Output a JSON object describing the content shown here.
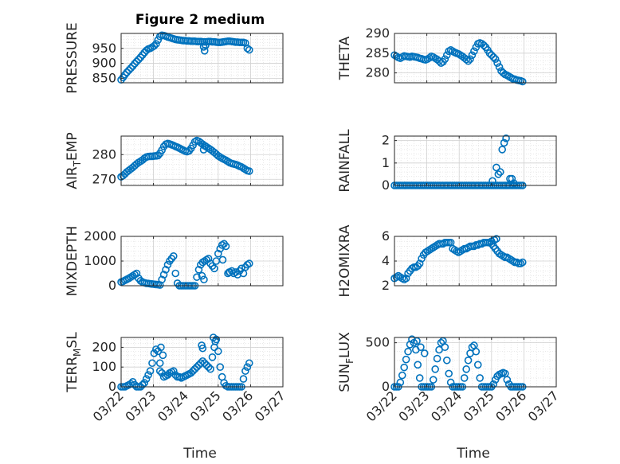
{
  "title": "Figure 2 medium",
  "xlabel": "Time",
  "x_tick_labels": [
    "03/22",
    "03/23",
    "03/24",
    "03/25",
    "03/26",
    "03/27"
  ],
  "marker_color": "#0072BD",
  "chart_data": [
    {
      "type": "scatter",
      "name": "pressure",
      "ylabel": "PRESSURE",
      "ylim": [
        835,
        1000
      ],
      "yticks": [
        850,
        900,
        950
      ],
      "x": [
        0.0,
        0.06,
        0.12,
        0.18,
        0.24,
        0.3,
        0.36,
        0.42,
        0.48,
        0.54,
        0.6,
        0.66,
        0.72,
        0.78,
        0.84,
        0.9,
        0.96,
        1.02,
        1.08,
        1.14,
        1.2,
        1.26,
        1.32,
        1.38,
        1.44,
        1.5,
        1.56,
        1.62,
        1.68,
        1.74,
        1.8,
        1.86,
        1.92,
        1.98,
        2.04,
        2.1,
        2.16,
        2.22,
        2.28,
        2.34,
        2.4,
        2.46,
        2.52,
        2.58,
        2.64,
        2.7,
        2.76,
        2.82,
        2.88,
        2.94,
        3.0,
        3.06,
        3.12,
        3.18,
        3.24,
        3.3,
        3.36,
        3.42,
        3.48,
        3.54,
        3.6,
        3.66,
        3.72,
        3.78,
        3.84,
        3.9,
        3.96,
        2.55,
        2.58,
        2.61
      ],
      "y": [
        845,
        853,
        862,
        870,
        877,
        884,
        891,
        899,
        906,
        913,
        920,
        928,
        936,
        943,
        948,
        950,
        954,
        958,
        965,
        978,
        990,
        994,
        993,
        991,
        988,
        986,
        984,
        982,
        980,
        979,
        978,
        977,
        976,
        976,
        975,
        975,
        974,
        974,
        974,
        973,
        973,
        973,
        972,
        972,
        972,
        973,
        973,
        972,
        972,
        971,
        970,
        970,
        971,
        972,
        973,
        974,
        974,
        973,
        972,
        971,
        971,
        970,
        970,
        970,
        968,
        950,
        945,
        955,
        942,
        960
      ]
    },
    {
      "type": "scatter",
      "name": "theta",
      "ylabel": "THETA",
      "ylim": [
        277.5,
        290
      ],
      "yticks": [
        280,
        285,
        290
      ],
      "x": [
        0.0,
        0.06,
        0.12,
        0.18,
        0.24,
        0.3,
        0.36,
        0.42,
        0.48,
        0.54,
        0.6,
        0.66,
        0.72,
        0.78,
        0.84,
        0.9,
        0.96,
        1.02,
        1.08,
        1.14,
        1.2,
        1.26,
        1.32,
        1.38,
        1.44,
        1.5,
        1.56,
        1.62,
        1.68,
        1.74,
        1.8,
        1.86,
        1.92,
        1.98,
        2.04,
        2.1,
        2.16,
        2.22,
        2.28,
        2.34,
        2.4,
        2.46,
        2.52,
        2.58,
        2.64,
        2.7,
        2.76,
        2.82,
        2.88,
        2.94,
        3.0,
        3.06,
        3.12,
        3.18,
        3.24,
        3.3,
        3.36,
        3.42,
        3.48,
        3.54,
        3.6,
        3.66,
        3.72,
        3.78,
        3.84,
        3.9,
        3.96
      ],
      "y": [
        284.5,
        284.2,
        283.9,
        283.7,
        284.0,
        284.3,
        284.2,
        284.1,
        284.0,
        284.2,
        284.1,
        284.0,
        283.9,
        283.7,
        283.6,
        283.4,
        283.3,
        283.5,
        283.8,
        284.2,
        284.0,
        283.7,
        283.4,
        283.0,
        282.5,
        282.8,
        283.5,
        284.5,
        285.5,
        285.8,
        285.5,
        285.2,
        285.0,
        284.8,
        284.5,
        284.2,
        283.8,
        283.4,
        283.0,
        283.5,
        284.5,
        285.5,
        286.5,
        287.4,
        287.6,
        287.4,
        287.0,
        286.5,
        285.8,
        285.0,
        284.5,
        284.0,
        283.5,
        282.5,
        281.5,
        280.5,
        280.0,
        279.6,
        279.4,
        279.1,
        278.8,
        278.5,
        278.4,
        278.2,
        278.1,
        278.0,
        277.8
      ]
    },
    {
      "type": "scatter",
      "name": "air_temp",
      "ylabel": "AIR_TEMP",
      "ylim": [
        267.5,
        287.5
      ],
      "yticks": [
        270,
        280
      ],
      "x": [
        0.0,
        0.06,
        0.12,
        0.18,
        0.24,
        0.3,
        0.36,
        0.42,
        0.48,
        0.54,
        0.6,
        0.66,
        0.72,
        0.78,
        0.84,
        0.9,
        0.96,
        1.02,
        1.08,
        1.14,
        1.2,
        1.26,
        1.32,
        1.38,
        1.44,
        1.5,
        1.56,
        1.62,
        1.68,
        1.74,
        1.8,
        1.86,
        1.92,
        1.98,
        2.04,
        2.1,
        2.16,
        2.22,
        2.28,
        2.34,
        2.4,
        2.46,
        2.52,
        2.58,
        2.64,
        2.7,
        2.76,
        2.82,
        2.88,
        2.94,
        3.0,
        3.06,
        3.12,
        3.18,
        3.24,
        3.3,
        3.36,
        3.42,
        3.48,
        3.54,
        3.6,
        3.66,
        3.72,
        3.78,
        3.84,
        3.9,
        3.96,
        2.55,
        2.6
      ],
      "y": [
        271.0,
        271.5,
        272.2,
        273.0,
        273.6,
        274.2,
        274.8,
        275.5,
        276.2,
        276.8,
        277.3,
        277.8,
        278.5,
        279.0,
        279.2,
        279.3,
        279.3,
        279.4,
        279.5,
        279.6,
        280.5,
        281.8,
        283.3,
        284.2,
        284.5,
        284.3,
        284.0,
        283.7,
        283.3,
        283.0,
        282.6,
        282.2,
        281.8,
        281.4,
        281.2,
        281.5,
        282.5,
        283.8,
        285.2,
        285.7,
        285.4,
        284.8,
        284.2,
        283.6,
        283.1,
        282.6,
        282.1,
        281.5,
        280.9,
        280.2,
        279.5,
        279.0,
        278.5,
        278.1,
        277.7,
        277.2,
        276.7,
        276.4,
        276.2,
        276.0,
        275.7,
        275.3,
        275.0,
        274.5,
        274.0,
        273.5,
        273.3,
        282.0,
        283.5
      ]
    },
    {
      "type": "scatter",
      "name": "rainfall",
      "ylabel": "RAINFALL",
      "ylim": [
        0,
        2.2
      ],
      "yticks": [
        0,
        1,
        2
      ],
      "x": [
        0.0,
        0.06,
        0.12,
        0.18,
        0.24,
        0.3,
        0.36,
        0.42,
        0.48,
        0.54,
        0.6,
        0.66,
        0.72,
        0.78,
        0.84,
        0.9,
        0.96,
        1.02,
        1.08,
        1.14,
        1.2,
        1.26,
        1.32,
        1.38,
        1.44,
        1.5,
        1.56,
        1.62,
        1.68,
        1.74,
        1.8,
        1.86,
        1.92,
        1.98,
        2.04,
        2.1,
        2.16,
        2.22,
        2.28,
        2.34,
        2.4,
        2.46,
        2.52,
        2.58,
        2.64,
        2.7,
        2.76,
        2.82,
        2.88,
        2.94,
        3.0,
        3.06,
        3.12,
        3.18,
        3.24,
        3.3,
        3.36,
        3.42,
        3.48,
        3.54,
        3.6,
        3.66,
        3.72,
        3.78,
        3.84,
        3.9,
        3.96,
        3.03,
        3.15,
        3.21,
        3.27,
        3.33,
        3.39,
        3.45,
        3.57,
        3.63,
        3.69
      ],
      "y": [
        0,
        0,
        0,
        0,
        0,
        0,
        0,
        0,
        0,
        0,
        0,
        0,
        0,
        0,
        0,
        0,
        0,
        0,
        0,
        0,
        0,
        0,
        0,
        0,
        0,
        0,
        0,
        0,
        0,
        0,
        0,
        0,
        0,
        0,
        0,
        0,
        0,
        0,
        0,
        0,
        0,
        0,
        0,
        0,
        0,
        0,
        0,
        0,
        0,
        0,
        0,
        0,
        0,
        0,
        0,
        0,
        0,
        0,
        0,
        0,
        0,
        0,
        0,
        0,
        0,
        0,
        0,
        0.2,
        0.8,
        0.5,
        0.6,
        1.6,
        1.9,
        2.1,
        0.3,
        0.3,
        0.1
      ]
    },
    {
      "type": "scatter",
      "name": "mixdepth",
      "ylabel": "MIXDEPTH",
      "ylim": [
        0,
        2000
      ],
      "yticks": [
        0,
        1000,
        2000
      ],
      "x": [
        0.0,
        0.06,
        0.12,
        0.18,
        0.24,
        0.3,
        0.36,
        0.42,
        0.48,
        0.54,
        0.6,
        0.66,
        0.72,
        0.78,
        0.84,
        0.9,
        0.96,
        1.02,
        1.08,
        1.14,
        1.2,
        1.26,
        1.32,
        1.38,
        1.44,
        1.5,
        1.56,
        1.62,
        1.68,
        1.74,
        1.8,
        1.86,
        1.92,
        1.98,
        2.04,
        2.1,
        2.16,
        2.22,
        2.28,
        2.34,
        2.4,
        2.46,
        2.52,
        2.58,
        2.64,
        2.7,
        2.76,
        2.82,
        2.88,
        2.94,
        3.0,
        3.06,
        3.12,
        3.18,
        3.24,
        3.3,
        3.36,
        3.42,
        3.48,
        3.54,
        3.6,
        3.66,
        3.72,
        3.78,
        3.84,
        3.9,
        3.96,
        2.5,
        2.56,
        3.14,
        3.34
      ],
      "y": [
        150,
        180,
        220,
        260,
        300,
        350,
        400,
        450,
        500,
        300,
        200,
        150,
        120,
        100,
        90,
        80,
        70,
        60,
        50,
        40,
        30,
        250,
        450,
        650,
        850,
        1000,
        1100,
        1200,
        500,
        100,
        0,
        0,
        0,
        0,
        0,
        0,
        0,
        0,
        0,
        350,
        650,
        850,
        950,
        1000,
        1050,
        1100,
        900,
        800,
        700,
        1000,
        1300,
        1500,
        1650,
        1700,
        1600,
        500,
        550,
        600,
        500,
        550,
        450,
        600,
        700,
        500,
        750,
        850,
        900,
        400,
        250,
        1050,
        550
      ]
    },
    {
      "type": "scatter",
      "name": "h2omixra",
      "ylabel": "H2OMIXRA",
      "ylim": [
        2,
        6
      ],
      "yticks": [
        2,
        4,
        6
      ],
      "x": [
        0.0,
        0.06,
        0.12,
        0.18,
        0.24,
        0.3,
        0.36,
        0.42,
        0.48,
        0.54,
        0.6,
        0.66,
        0.72,
        0.78,
        0.84,
        0.9,
        0.96,
        1.02,
        1.08,
        1.14,
        1.2,
        1.26,
        1.32,
        1.38,
        1.44,
        1.5,
        1.56,
        1.62,
        1.68,
        1.74,
        1.8,
        1.86,
        1.92,
        1.98,
        2.04,
        2.1,
        2.16,
        2.22,
        2.28,
        2.34,
        2.4,
        2.46,
        2.52,
        2.58,
        2.64,
        2.7,
        2.76,
        2.82,
        2.88,
        2.94,
        3.0,
        3.06,
        3.12,
        3.18,
        3.24,
        3.3,
        3.36,
        3.42,
        3.48,
        3.54,
        3.6,
        3.66,
        3.72,
        3.78,
        3.84,
        3.9,
        3.96,
        3.0,
        3.09,
        3.15
      ],
      "y": [
        2.6,
        2.7,
        2.8,
        2.7,
        2.6,
        2.5,
        2.6,
        3.0,
        3.2,
        3.4,
        3.5,
        3.5,
        3.6,
        3.8,
        4.2,
        4.5,
        4.7,
        4.8,
        4.9,
        5.0,
        5.1,
        5.2,
        5.3,
        5.4,
        5.4,
        5.4,
        5.5,
        5.5,
        5.5,
        5.5,
        5.0,
        4.9,
        4.8,
        4.7,
        4.8,
        4.9,
        5.0,
        5.0,
        5.1,
        5.2,
        5.2,
        5.2,
        5.3,
        5.3,
        5.4,
        5.4,
        5.5,
        5.5,
        5.5,
        5.5,
        5.4,
        5.2,
        5.0,
        4.8,
        4.6,
        4.5,
        4.4,
        4.3,
        4.3,
        4.2,
        4.1,
        4.0,
        3.9,
        3.9,
        3.8,
        3.8,
        3.9,
        5.6,
        5.7,
        5.8
      ]
    },
    {
      "type": "scatter",
      "name": "terr_msl",
      "ylabel": "TERR_MSL",
      "ylim": [
        0,
        250
      ],
      "yticks": [
        0,
        100,
        200
      ],
      "x": [
        0.0,
        0.06,
        0.12,
        0.18,
        0.24,
        0.3,
        0.36,
        0.42,
        0.48,
        0.54,
        0.6,
        0.66,
        0.72,
        0.78,
        0.84,
        0.9,
        0.96,
        1.02,
        1.08,
        1.14,
        1.2,
        1.26,
        1.32,
        1.38,
        1.44,
        1.5,
        1.56,
        1.62,
        1.68,
        1.74,
        1.8,
        1.86,
        1.92,
        1.98,
        2.04,
        2.1,
        2.16,
        2.22,
        2.28,
        2.34,
        2.4,
        2.46,
        2.52,
        2.58,
        2.64,
        2.7,
        2.76,
        2.82,
        2.88,
        2.94,
        3.0,
        3.06,
        3.12,
        3.18,
        3.24,
        3.3,
        3.36,
        3.42,
        3.48,
        3.54,
        3.6,
        3.66,
        3.72,
        3.78,
        3.84,
        3.9,
        3.96,
        2.49,
        2.52,
        2.85,
        2.91,
        1.2,
        1.23,
        1.29
      ],
      "y": [
        0,
        0,
        0,
        5,
        10,
        15,
        25,
        10,
        0,
        0,
        0,
        10,
        20,
        40,
        60,
        80,
        120,
        170,
        190,
        180,
        120,
        70,
        50,
        55,
        60,
        70,
        75,
        80,
        60,
        50,
        50,
        45,
        50,
        55,
        60,
        65,
        70,
        80,
        90,
        100,
        110,
        120,
        130,
        120,
        110,
        100,
        90,
        150,
        200,
        240,
        180,
        100,
        50,
        20,
        5,
        0,
        0,
        0,
        0,
        0,
        0,
        0,
        0,
        40,
        80,
        100,
        120,
        210,
        195,
        250,
        230,
        80,
        200,
        160
      ]
    },
    {
      "type": "scatter",
      "name": "sun_flux",
      "ylabel": "SUN_FLUX",
      "ylim": [
        0,
        560
      ],
      "yticks": [
        0,
        500
      ],
      "x": [
        0.0,
        0.06,
        0.12,
        0.18,
        0.24,
        0.3,
        0.36,
        0.42,
        0.48,
        0.54,
        0.6,
        0.66,
        0.72,
        0.78,
        0.84,
        0.9,
        0.96,
        1.02,
        1.08,
        1.14,
        1.2,
        1.26,
        1.32,
        1.38,
        1.44,
        1.5,
        1.56,
        1.62,
        1.68,
        1.74,
        1.8,
        1.86,
        1.92,
        1.98,
        2.04,
        2.1,
        2.16,
        2.22,
        2.28,
        2.34,
        2.4,
        2.46,
        2.52,
        2.58,
        2.64,
        2.7,
        2.76,
        2.82,
        2.88,
        2.94,
        3.0,
        3.06,
        3.12,
        3.18,
        3.24,
        3.3,
        3.36,
        3.42,
        3.48,
        3.54,
        3.6,
        3.66,
        3.72,
        3.78,
        3.84,
        3.9,
        3.96,
        0.69,
        0.81,
        0.93
      ],
      "y": [
        0,
        0,
        0,
        50,
        130,
        220,
        310,
        400,
        480,
        540,
        500,
        420,
        250,
        100,
        0,
        0,
        0,
        0,
        0,
        0,
        80,
        200,
        320,
        420,
        500,
        520,
        450,
        300,
        150,
        50,
        0,
        0,
        0,
        0,
        0,
        0,
        100,
        200,
        300,
        380,
        450,
        470,
        400,
        250,
        100,
        0,
        0,
        0,
        0,
        0,
        0,
        30,
        80,
        120,
        140,
        150,
        160,
        150,
        80,
        30,
        0,
        0,
        0,
        0,
        0,
        0,
        0,
        520,
        450,
        380
      ]
    }
  ]
}
